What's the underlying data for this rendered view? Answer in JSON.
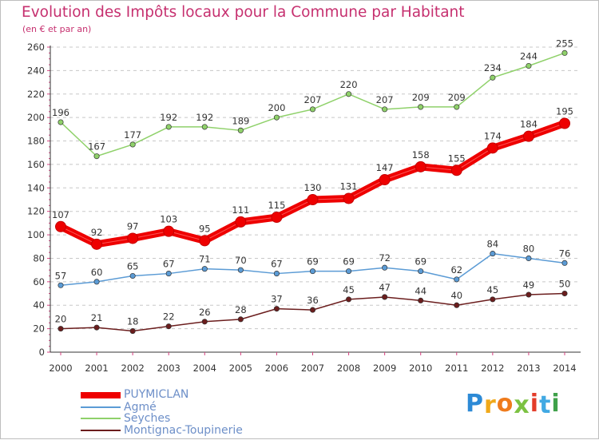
{
  "title": "Evolution des Impôts locaux pour la Commune par Habitant",
  "subtitle": "(en € et par an)",
  "logo": {
    "letters": [
      "P",
      "r",
      "o",
      "x",
      "i",
      "t",
      "i"
    ],
    "colors": [
      "#2d8ad6",
      "#f0a91a",
      "#ef7b1c",
      "#7cc242",
      "#e33c2a",
      "#41a9e3",
      "#3fa14a"
    ]
  },
  "chart_data": {
    "type": "line",
    "title": "Evolution des Impôts locaux pour la Commune par Habitant",
    "subtitle": "(en € et par an)",
    "x": [
      "2000",
      "2001",
      "2002",
      "2003",
      "2004",
      "2005",
      "2006",
      "2007",
      "2008",
      "2009",
      "2010",
      "2011",
      "2012",
      "2013",
      "2014"
    ],
    "ylim": [
      0,
      260
    ],
    "yticks": [
      0,
      20,
      40,
      60,
      80,
      100,
      120,
      140,
      160,
      180,
      200,
      220,
      240,
      260
    ],
    "grid": "horizontal dashed",
    "legend_position": "bottom-left",
    "series": [
      {
        "name": "PUYMICLAN",
        "color": "#ee0000",
        "values": [
          107,
          92,
          97,
          103,
          95,
          111,
          115,
          130,
          131,
          147,
          158,
          155,
          174,
          184,
          195
        ]
      },
      {
        "name": "Agmé",
        "color": "#5b9bd5",
        "values": [
          57,
          60,
          65,
          67,
          71,
          70,
          67,
          69,
          69,
          72,
          69,
          62,
          84,
          80,
          76
        ]
      },
      {
        "name": "Seyches",
        "color": "#8fd16a",
        "values": [
          196,
          167,
          177,
          192,
          192,
          189,
          200,
          207,
          220,
          207,
          209,
          209,
          234,
          244,
          255
        ]
      },
      {
        "name": "Montignac-Toupinerie",
        "color": "#6b1d1d",
        "values": [
          20,
          21,
          18,
          22,
          26,
          28,
          37,
          36,
          45,
          47,
          44,
          40,
          45,
          49,
          50
        ]
      }
    ]
  }
}
